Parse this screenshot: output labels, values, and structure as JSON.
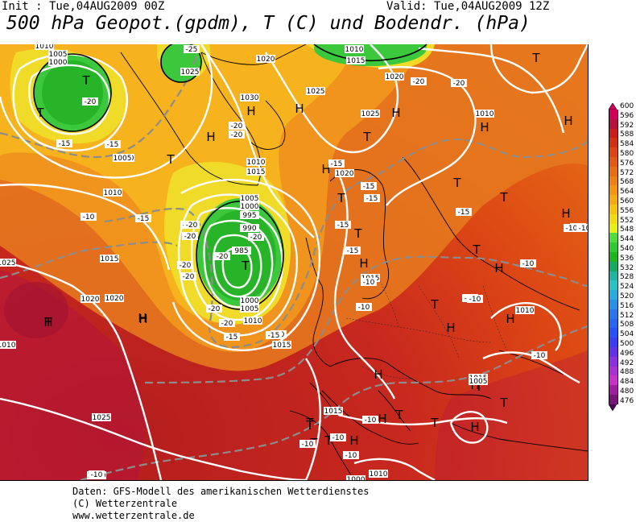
{
  "header": {
    "init": "Init : Tue,04AUG2009 00Z",
    "valid": "Valid: Tue,04AUG2009 12Z",
    "title": "500 hPa Geopot.(gpdm), T (C) und Bodendr. (hPa)"
  },
  "legend": {
    "values": [
      "600",
      "596",
      "592",
      "588",
      "584",
      "580",
      "576",
      "572",
      "568",
      "564",
      "560",
      "556",
      "552",
      "548",
      "544",
      "540",
      "536",
      "532",
      "528",
      "524",
      "520",
      "516",
      "512",
      "508",
      "504",
      "500",
      "496",
      "492",
      "488",
      "484",
      "480",
      "476"
    ],
    "colors": [
      "#d2005a",
      "#b4143c",
      "#c81e1e",
      "#d23214",
      "#dc4614",
      "#e15a14",
      "#e66e14",
      "#eb8214",
      "#f09614",
      "#f5aa14",
      "#f5c314",
      "#f0dc14",
      "#e6f014",
      "#50dc3c",
      "#32c832",
      "#1eb41e",
      "#14aa64",
      "#1eb4a0",
      "#28c3c3",
      "#28aadc",
      "#2891e6",
      "#2878eb",
      "#2864f0",
      "#2850f5",
      "#3c3cf0",
      "#6432e6",
      "#8c32dc",
      "#aa32d2",
      "#c832c8",
      "#a01ea0",
      "#781478",
      "#500a50"
    ],
    "arrow_colors": {
      "top": "#d2005a",
      "bottom": "#50005a"
    }
  },
  "map": {
    "centers": [
      {
        "label": "T"
      },
      {
        "label": "T"
      },
      {
        "label": "T"
      },
      {
        "label": "H"
      },
      {
        "label": "H"
      },
      {
        "label": "H"
      },
      {
        "label": "H"
      },
      {
        "label": "H"
      },
      {
        "label": "T"
      },
      {
        "label": "H"
      },
      {
        "label": "T"
      },
      {
        "label": "T"
      },
      {
        "label": "H"
      },
      {
        "label": "T"
      },
      {
        "label": "T"
      },
      {
        "label": "H"
      },
      {
        "label": "T"
      },
      {
        "label": "T"
      },
      {
        "label": "H"
      },
      {
        "label": "H"
      },
      {
        "label": "T"
      },
      {
        "label": "H"
      },
      {
        "label": "H"
      },
      {
        "label": "T"
      },
      {
        "label": "H"
      },
      {
        "label": "H"
      },
      {
        "label": "H"
      },
      {
        "label": "T"
      },
      {
        "label": "T"
      },
      {
        "label": "H"
      },
      {
        "label": "T"
      },
      {
        "label": "T"
      },
      {
        "label": "T"
      },
      {
        "label": "T"
      },
      {
        "label": "H"
      },
      {
        "label": "T"
      },
      {
        "label": "T"
      },
      {
        "label": "H"
      },
      {
        "label": "H"
      },
      {
        "label": "T"
      },
      {
        "label": "H"
      }
    ],
    "pressure_labels": [
      "1010",
      "1005",
      "1000",
      "1025",
      "1020",
      "1030",
      "1025",
      "1010",
      "1015",
      "1020",
      "1010",
      "1025",
      "1020",
      "1010",
      "1005",
      "1010",
      "1015",
      "1020",
      "1015",
      "1005",
      "1000",
      "995",
      "990",
      "985",
      "1000",
      "1005",
      "1010",
      "1015",
      "1020",
      "1015",
      "1020",
      "1010",
      "1015",
      "1025",
      "1015",
      "1010",
      "1025",
      "1010",
      "1010",
      "1005",
      "1000"
    ],
    "temp_labels": [
      "-20",
      "-25",
      "-20",
      "-20",
      "-20",
      "-15",
      "-15",
      "-10",
      "-15",
      "-20",
      "-20",
      "-20",
      "-20",
      "-15",
      "-15",
      "-15",
      "-15",
      "-15",
      "-20",
      "-20",
      "-20",
      "-10",
      "-10",
      "-15",
      "-10",
      "-15",
      "-10",
      "-10",
      "-10",
      "-10",
      "-10",
      "-10",
      "-10",
      "-10",
      "-10",
      "-15",
      "-20",
      "-10",
      "-20",
      "-20",
      "-10",
      "-10"
    ]
  },
  "footer": {
    "line1": "Daten: GFS-Modell des amerikanischen Wetterdienstes",
    "line2": "(C) Wetterzentrale",
    "line3": "www.wetterzentrale.de"
  }
}
